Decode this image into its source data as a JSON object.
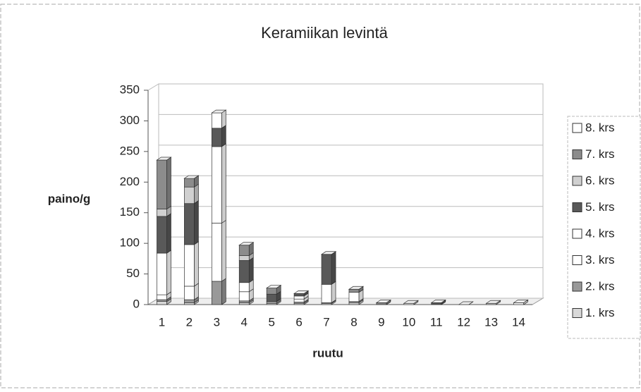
{
  "chart_data": {
    "type": "bar3d_stacked",
    "title": "Keramiikan levintä",
    "xlabel": "ruutu",
    "ylabel": "paino/g",
    "categories": [
      "1",
      "2",
      "3",
      "4",
      "5",
      "6",
      "7",
      "8",
      "9",
      "10",
      "11",
      "12",
      "13",
      "14"
    ],
    "series": [
      {
        "name": "1. krs",
        "color": "#d9d9d9",
        "values": [
          5,
          3,
          0,
          3,
          2,
          2,
          2,
          3,
          0,
          0,
          0,
          0,
          2,
          0
        ]
      },
      {
        "name": "2. krs",
        "color": "#999999",
        "values": [
          3,
          5,
          38,
          3,
          3,
          2,
          1,
          2,
          0,
          0,
          0,
          0,
          0,
          0
        ]
      },
      {
        "name": "3. krs",
        "color": "#ffffff",
        "values": [
          8,
          22,
          95,
          15,
          0,
          5,
          30,
          15,
          0,
          2,
          0,
          0,
          0,
          3
        ]
      },
      {
        "name": "4. krs",
        "color": "#ffffff",
        "values": [
          68,
          68,
          125,
          15,
          0,
          5,
          0,
          0,
          0,
          0,
          0,
          0,
          0,
          0
        ]
      },
      {
        "name": "5. krs",
        "color": "#595959",
        "values": [
          60,
          67,
          30,
          36,
          12,
          4,
          49,
          0,
          0,
          0,
          3,
          0,
          0,
          0
        ]
      },
      {
        "name": "6. krs",
        "color": "#d0d0d0",
        "values": [
          12,
          27,
          0,
          8,
          0,
          0,
          0,
          0,
          0,
          0,
          0,
          0,
          0,
          0
        ]
      },
      {
        "name": "7. krs",
        "color": "#8c8c8c",
        "values": [
          80,
          14,
          0,
          17,
          10,
          0,
          0,
          5,
          3,
          0,
          0,
          0,
          0,
          0
        ]
      },
      {
        "name": "8. krs",
        "color": "#ffffff",
        "values": [
          0,
          0,
          25,
          0,
          0,
          0,
          0,
          0,
          0,
          0,
          0,
          0,
          0,
          0
        ]
      }
    ],
    "ylim": [
      0,
      350
    ],
    "yticks": [
      0,
      50,
      100,
      150,
      200,
      250,
      300,
      350
    ],
    "grid": true,
    "legend": "right"
  }
}
